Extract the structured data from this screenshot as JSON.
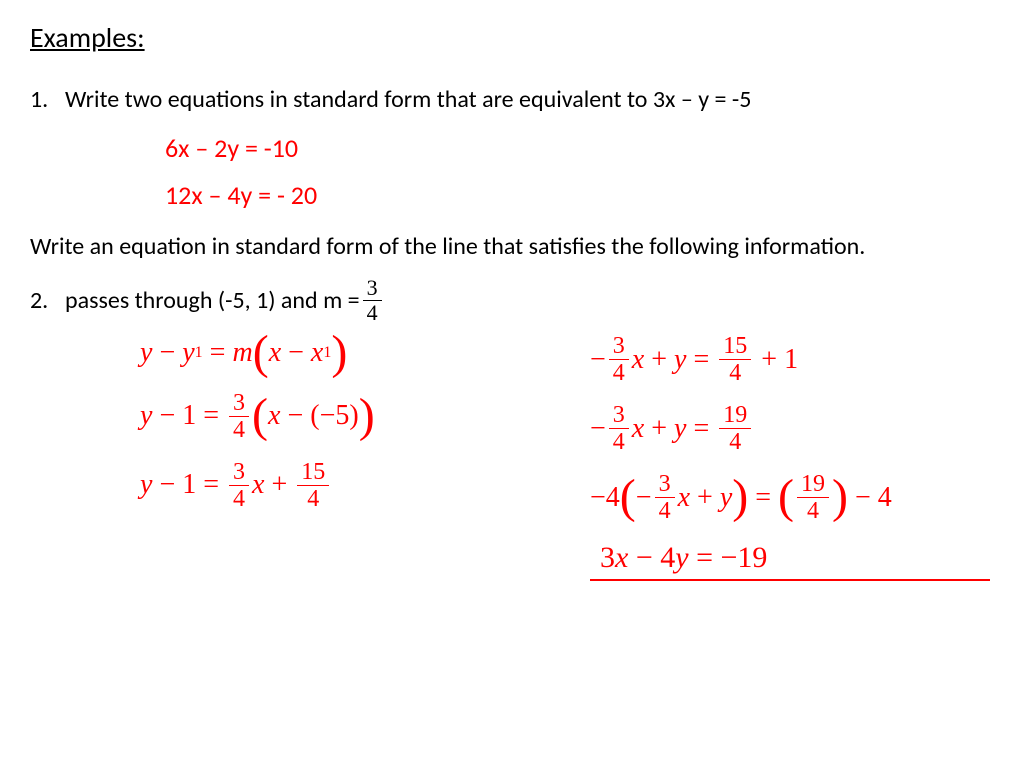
{
  "heading": "Examples:",
  "p1": {
    "num": "1.",
    "text": "Write two equations in standard form that are equivalent to 3x – y = -5",
    "ans1": "6x – 2y = -10",
    "ans2": "12x – 4y = - 20"
  },
  "prompt2": "Write an equation in standard form of the line that satisfies the following information.",
  "p2": {
    "num": "2.",
    "text": "passes through (-5, 1)  and m = ",
    "frac_n": "3",
    "frac_d": "4"
  },
  "work_left": {
    "l1_a": "y",
    "l1_b": "y",
    "l1_c": "m",
    "l1_d": "x",
    "l1_e": "x",
    "l2_a": "y",
    "l2_b": "1",
    "l2_fn": "3",
    "l2_fd": "4",
    "l2_c": "x",
    "l2_d": "5",
    "l3_a": "y",
    "l3_b": "1",
    "l3_fn": "3",
    "l3_fd": "4",
    "l3_c": "x",
    "l3_f2n": "15",
    "l3_f2d": "4"
  },
  "work_right": {
    "r1_fn": "3",
    "r1_fd": "4",
    "r1_a": "x",
    "r1_b": "y",
    "r1_f2n": "15",
    "r1_f2d": "4",
    "r1_c": "1",
    "r2_fn": "3",
    "r2_fd": "4",
    "r2_a": "x",
    "r2_b": "y",
    "r2_f2n": "19",
    "r2_f2d": "4",
    "r3_a": "4",
    "r3_fn": "3",
    "r3_fd": "4",
    "r3_b": "x",
    "r3_c": "y",
    "r3_f2n": "19",
    "r3_f2d": "4",
    "r3_d": "4",
    "final_a": "3",
    "final_b": "x",
    "final_c": "4",
    "final_d": "y",
    "final_e": "19"
  },
  "colors": {
    "answer": "#ff0000",
    "text": "#000000",
    "bg": "#ffffff"
  },
  "font_sizes": {
    "heading": 28,
    "body": 24,
    "math": 28,
    "final": 30
  }
}
